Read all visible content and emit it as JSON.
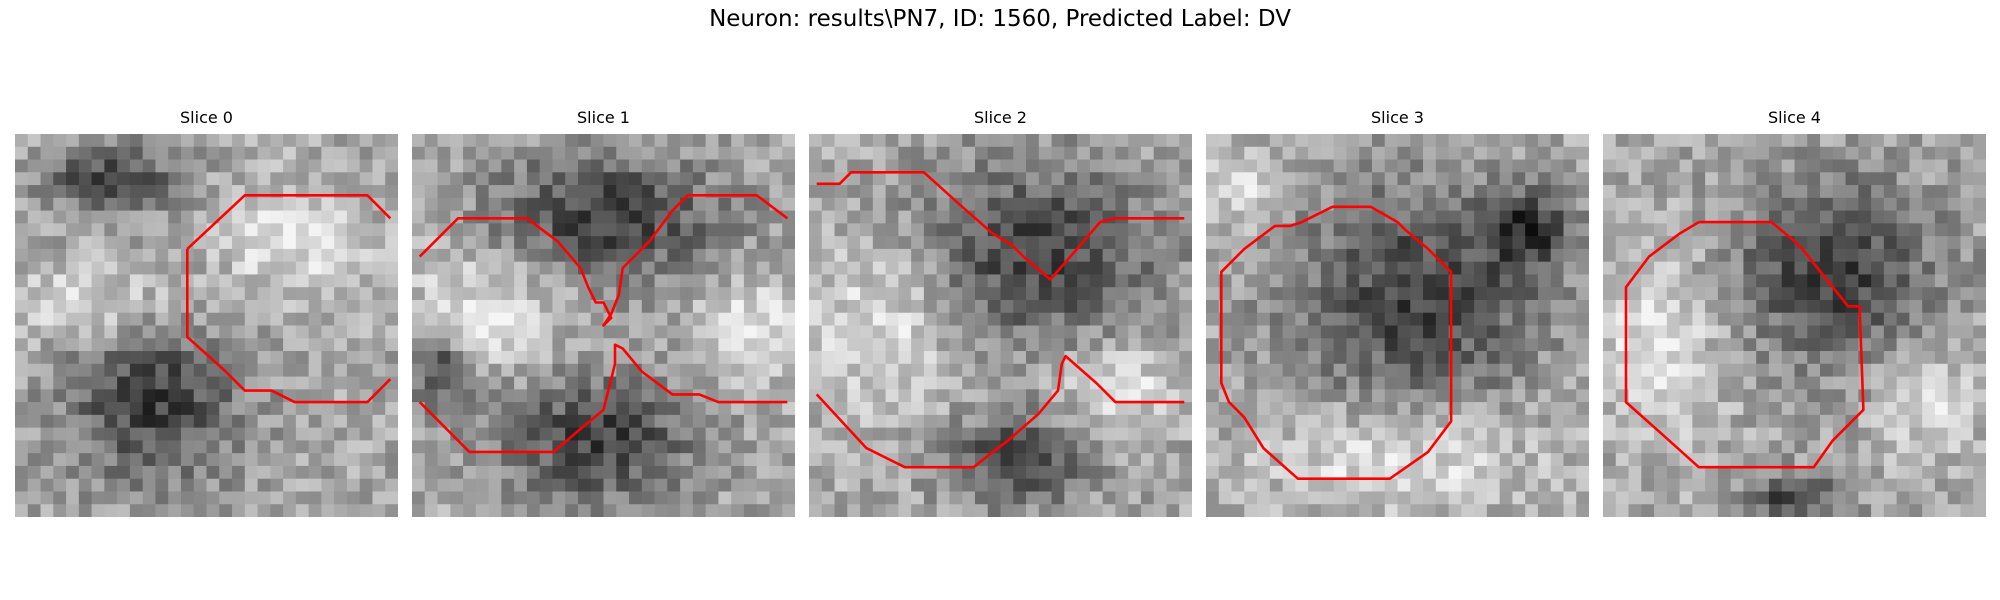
{
  "figure_title": "Neuron: results\\PN7, ID: 1560, Predicted Label: DV",
  "contour_color": "#ff0000",
  "panels": [
    {
      "title": "Slice 0",
      "dark_blobs": [
        [
          0.36,
          0.69,
          0.27,
          0.26
        ],
        [
          0.25,
          0.12,
          0.2,
          0.1
        ]
      ],
      "bright_blobs": [
        [
          0.72,
          0.28,
          0.22,
          0.16
        ],
        [
          0.2,
          0.45,
          0.3,
          0.12
        ]
      ],
      "contours": [
        [
          [
            0.45,
            0.3
          ],
          [
            0.6,
            0.16
          ],
          [
            0.92,
            0.16
          ],
          [
            0.98,
            0.22
          ]
        ],
        [
          [
            0.45,
            0.3
          ],
          [
            0.45,
            0.53
          ],
          [
            0.55,
            0.62
          ],
          [
            0.6,
            0.67
          ],
          [
            0.67,
            0.67
          ],
          [
            0.73,
            0.7
          ],
          [
            0.92,
            0.7
          ],
          [
            0.98,
            0.64
          ]
        ]
      ]
    },
    {
      "title": "Slice 1",
      "dark_blobs": [
        [
          0.5,
          0.22,
          0.36,
          0.2
        ],
        [
          0.48,
          0.8,
          0.3,
          0.2
        ],
        [
          0.08,
          0.62,
          0.1,
          0.1
        ]
      ],
      "bright_blobs": [
        [
          0.2,
          0.45,
          0.25,
          0.2
        ],
        [
          0.88,
          0.5,
          0.15,
          0.15
        ]
      ],
      "contours": [
        [
          [
            0.02,
            0.32
          ],
          [
            0.12,
            0.22
          ],
          [
            0.3,
            0.22
          ],
          [
            0.38,
            0.28
          ],
          [
            0.44,
            0.35
          ],
          [
            0.46,
            0.4
          ],
          [
            0.47,
            0.42
          ],
          [
            0.48,
            0.44
          ],
          [
            0.5,
            0.44
          ],
          [
            0.52,
            0.48
          ],
          [
            0.5,
            0.5
          ],
          [
            0.52,
            0.47
          ],
          [
            0.54,
            0.42
          ],
          [
            0.55,
            0.35
          ],
          [
            0.62,
            0.28
          ],
          [
            0.68,
            0.2
          ],
          [
            0.72,
            0.16
          ],
          [
            0.9,
            0.16
          ],
          [
            0.98,
            0.22
          ]
        ],
        [
          [
            0.02,
            0.7
          ],
          [
            0.15,
            0.83
          ],
          [
            0.37,
            0.83
          ],
          [
            0.44,
            0.77
          ],
          [
            0.5,
            0.72
          ],
          [
            0.53,
            0.6
          ],
          [
            0.53,
            0.55
          ],
          [
            0.55,
            0.56
          ],
          [
            0.6,
            0.62
          ],
          [
            0.68,
            0.68
          ],
          [
            0.75,
            0.68
          ],
          [
            0.8,
            0.7
          ],
          [
            0.98,
            0.7
          ]
        ]
      ]
    },
    {
      "title": "Slice 2",
      "dark_blobs": [
        [
          0.6,
          0.32,
          0.36,
          0.28
        ],
        [
          0.55,
          0.85,
          0.22,
          0.14
        ]
      ],
      "bright_blobs": [
        [
          0.2,
          0.5,
          0.25,
          0.25
        ],
        [
          0.8,
          0.65,
          0.2,
          0.15
        ]
      ],
      "contours": [
        [
          [
            0.02,
            0.13
          ],
          [
            0.08,
            0.13
          ],
          [
            0.11,
            0.1
          ],
          [
            0.3,
            0.1
          ],
          [
            0.4,
            0.19
          ],
          [
            0.48,
            0.26
          ],
          [
            0.53,
            0.29
          ],
          [
            0.56,
            0.32
          ],
          [
            0.63,
            0.38
          ],
          [
            0.7,
            0.3
          ],
          [
            0.76,
            0.23
          ],
          [
            0.8,
            0.22
          ],
          [
            0.98,
            0.22
          ]
        ],
        [
          [
            0.02,
            0.68
          ],
          [
            0.15,
            0.82
          ],
          [
            0.25,
            0.87
          ],
          [
            0.43,
            0.87
          ],
          [
            0.48,
            0.83
          ],
          [
            0.52,
            0.8
          ],
          [
            0.6,
            0.73
          ],
          [
            0.65,
            0.67
          ],
          [
            0.66,
            0.6
          ],
          [
            0.67,
            0.58
          ],
          [
            0.75,
            0.65
          ],
          [
            0.8,
            0.7
          ],
          [
            0.98,
            0.7
          ]
        ]
      ]
    },
    {
      "title": "Slice 3",
      "dark_blobs": [
        [
          0.55,
          0.42,
          0.38,
          0.32
        ],
        [
          0.85,
          0.25,
          0.12,
          0.12
        ]
      ],
      "bright_blobs": [
        [
          0.5,
          0.85,
          0.4,
          0.15
        ],
        [
          0.1,
          0.15,
          0.12,
          0.12
        ]
      ],
      "contours": [
        [
          [
            0.25,
            0.23
          ],
          [
            0.33,
            0.19
          ],
          [
            0.43,
            0.19
          ],
          [
            0.5,
            0.23
          ],
          [
            0.52,
            0.25
          ],
          [
            0.58,
            0.3
          ],
          [
            0.64,
            0.36
          ],
          [
            0.64,
            0.75
          ],
          [
            0.58,
            0.83
          ],
          [
            0.48,
            0.9
          ],
          [
            0.24,
            0.9
          ],
          [
            0.15,
            0.82
          ],
          [
            0.1,
            0.74
          ],
          [
            0.06,
            0.7
          ],
          [
            0.04,
            0.65
          ],
          [
            0.04,
            0.36
          ],
          [
            0.1,
            0.3
          ],
          [
            0.18,
            0.24
          ],
          [
            0.22,
            0.24
          ],
          [
            0.25,
            0.23
          ]
        ]
      ]
    },
    {
      "title": "Slice 4",
      "dark_blobs": [
        [
          0.6,
          0.36,
          0.32,
          0.28
        ],
        [
          0.5,
          0.95,
          0.15,
          0.08
        ]
      ],
      "bright_blobs": [
        [
          0.15,
          0.55,
          0.2,
          0.3
        ],
        [
          0.85,
          0.7,
          0.15,
          0.15
        ]
      ],
      "contours": [
        [
          [
            0.25,
            0.23
          ],
          [
            0.44,
            0.23
          ],
          [
            0.5,
            0.28
          ],
          [
            0.52,
            0.3
          ],
          [
            0.56,
            0.35
          ],
          [
            0.64,
            0.45
          ],
          [
            0.67,
            0.45
          ],
          [
            0.68,
            0.72
          ],
          [
            0.6,
            0.8
          ],
          [
            0.55,
            0.87
          ],
          [
            0.25,
            0.87
          ],
          [
            0.15,
            0.78
          ],
          [
            0.06,
            0.7
          ],
          [
            0.06,
            0.4
          ],
          [
            0.12,
            0.32
          ],
          [
            0.2,
            0.26
          ],
          [
            0.25,
            0.23
          ]
        ]
      ]
    }
  ]
}
